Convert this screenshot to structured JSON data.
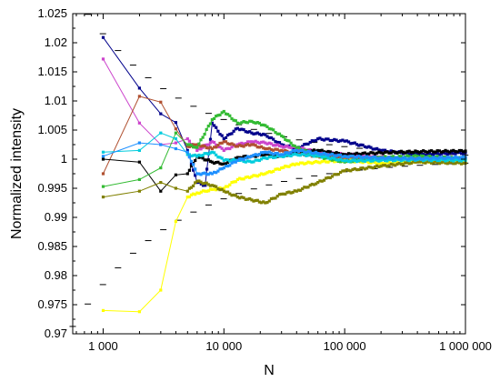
{
  "chart_data": {
    "type": "scatter",
    "xlabel": "N",
    "ylabel": "Normalized intensity",
    "x_scale": "log",
    "xlim": [
      560,
      1000000
    ],
    "ylim": [
      0.97,
      1.025
    ],
    "x_ticks": [
      1000,
      10000,
      100000,
      1000000
    ],
    "x_tick_labels": [
      "1 000",
      "10 000",
      "100 000",
      "1 000 000"
    ],
    "y_ticks": [
      0.97,
      0.975,
      0.98,
      0.985,
      0.99,
      0.995,
      1,
      1.005,
      1.01,
      1.015,
      1.02,
      1.025
    ],
    "y_tick_labels": [
      "0.97",
      "0.975",
      "0.98",
      "0.985",
      "0.99",
      "0.995",
      "1",
      "1.005",
      "1.01",
      "1.015",
      "1.02",
      "1.025"
    ],
    "grid": false,
    "series": [
      {
        "color": "#00008b",
        "x": [
          1000,
          2000,
          3000,
          4000,
          5000,
          6000,
          7000,
          8000,
          10000,
          13000,
          17000,
          22000,
          30000,
          40000,
          60000,
          100000,
          200000,
          400000,
          1000000
        ],
        "values": [
          1.0209,
          1.0122,
          1.0078,
          1.0063,
          1.0015,
          0.996,
          0.9955,
          1.0062,
          1.0035,
          1.0053,
          1.0045,
          1.0042,
          1.0025,
          1.0018,
          1.0035,
          1.0031,
          1.0015,
          1.0008,
          1.0011
        ]
      },
      {
        "color": "#cc44cc",
        "x": [
          1000,
          2000,
          3000,
          4000,
          5000,
          6000,
          8000,
          10000,
          13000,
          17000,
          22000,
          30000,
          40000,
          60000,
          100000,
          200000,
          400000,
          1000000
        ],
        "values": [
          1.0172,
          1.0062,
          1.0025,
          1.0028,
          1.0035,
          1.0015,
          1.003,
          1.0015,
          1.0025,
          1.003,
          1.0028,
          1.0022,
          1.002,
          1.0012,
          1.0008,
          1.0004,
          0.9998,
          1.0002
        ]
      },
      {
        "color": "#b05030",
        "x": [
          1000,
          2000,
          3000,
          4000,
          5000,
          6000,
          8000,
          10000,
          13000,
          17000,
          22000,
          30000,
          40000,
          60000,
          100000,
          200000,
          400000,
          1000000
        ],
        "values": [
          0.9975,
          1.0108,
          1.0098,
          1.0052,
          1.0022,
          1.0025,
          1.0018,
          1.003,
          1.0022,
          1.0025,
          1.0018,
          1.0015,
          1.001,
          1.0005,
          1.0002,
          0.9999,
          1.0002,
          1.0001
        ]
      },
      {
        "color": "#ffff00",
        "x": [
          1000,
          2000,
          3000,
          4000,
          5000,
          6000,
          7000,
          8000,
          10000,
          13000,
          17000,
          22000,
          30000,
          40000,
          60000,
          100000,
          200000,
          400000,
          1000000
        ],
        "values": [
          0.974,
          0.9738,
          0.9775,
          0.9893,
          0.9935,
          0.9942,
          0.9945,
          0.9948,
          0.995,
          0.9965,
          0.997,
          0.9975,
          0.9985,
          0.9992,
          0.9995,
          0.9998,
          0.9993,
          0.9996,
          0.9996
        ]
      },
      {
        "color": "#000000",
        "x": [
          1000,
          2000,
          3000,
          4000,
          5000,
          6000,
          8000,
          10000,
          13000,
          17000,
          22000,
          30000,
          40000,
          60000,
          100000,
          200000,
          400000,
          1000000
        ],
        "values": [
          1.0,
          0.9995,
          0.9945,
          0.9973,
          0.9975,
          1.0005,
          0.9995,
          0.9992,
          1.0003,
          1.0005,
          1.0008,
          1.0005,
          1.0012,
          1.0015,
          1.0008,
          1.0011,
          1.0013,
          1.0014
        ]
      },
      {
        "color": "#33bb33",
        "x": [
          1000,
          2000,
          3000,
          4000,
          5000,
          6000,
          8000,
          10000,
          13000,
          17000,
          22000,
          30000,
          40000,
          60000,
          100000,
          200000,
          400000,
          1000000
        ],
        "values": [
          0.9953,
          0.9965,
          0.9985,
          1.0045,
          1.0025,
          1.002,
          1.0068,
          1.0082,
          1.0062,
          1.0065,
          1.0058,
          1.004,
          1.002,
          1.0005,
          0.9995,
          1.0003,
          1.0005,
          1.0001
        ]
      },
      {
        "color": "#808000",
        "x": [
          1000,
          2000,
          3000,
          4000,
          5000,
          6000,
          8000,
          10000,
          13000,
          17000,
          22000,
          30000,
          40000,
          60000,
          100000,
          200000,
          400000,
          1000000
        ],
        "values": [
          0.9935,
          0.9945,
          0.996,
          0.995,
          0.9945,
          0.9962,
          0.9955,
          0.9945,
          0.9935,
          0.993,
          0.9925,
          0.994,
          0.9945,
          0.996,
          0.998,
          0.9988,
          0.9995,
          0.9993
        ]
      },
      {
        "color": "#00ccdd",
        "x": [
          1000,
          2000,
          3000,
          4000,
          5000,
          6000,
          8000,
          10000,
          13000,
          17000,
          22000,
          30000,
          40000,
          60000,
          100000,
          200000,
          400000,
          1000000
        ],
        "values": [
          1.0012,
          1.0015,
          1.0045,
          1.0035,
          1.0008,
          1.0005,
          1.0012,
          0.9998,
          0.9998,
          0.9995,
          1.0002,
          1.0005,
          1.0008,
          1.0006,
          0.9997,
          0.9998,
          0.9999,
          0.9998
        ]
      },
      {
        "color": "#1e90ff",
        "x": [
          1000,
          2000,
          3000,
          4000,
          5000,
          6000,
          8000,
          10000,
          13000,
          17000,
          22000,
          30000,
          40000,
          60000,
          100000,
          200000,
          400000,
          1000000
        ],
        "values": [
          1.0005,
          1.0028,
          1.0025,
          1.0018,
          1.0012,
          0.9975,
          0.9975,
          0.9985,
          0.9998,
          1.0005,
          1.0012,
          1.0008,
          1.0015,
          1.001,
          1.0005,
          1.0002,
          1.0001,
          1.0003
        ]
      }
    ],
    "envelope": {
      "color": "#000000",
      "style": "dashed",
      "center": 1.0,
      "scale": 0.68
    }
  }
}
